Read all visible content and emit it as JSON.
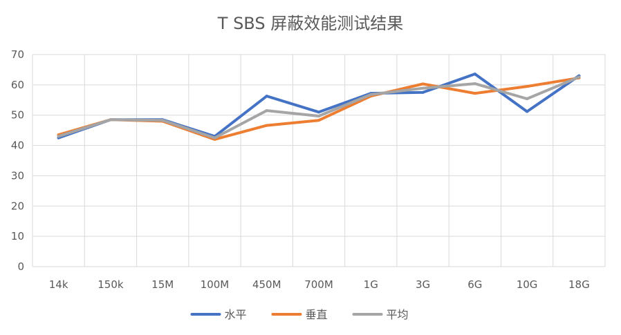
{
  "chart_data": {
    "type": "line",
    "title": "T SBS 屏蔽效能测试结果",
    "xlabel": "",
    "ylabel": "",
    "categories": [
      "14k",
      "150k",
      "15M",
      "100M",
      "450M",
      "700M",
      "1G",
      "3G",
      "6G",
      "10G",
      "18G"
    ],
    "ylim": [
      0,
      70
    ],
    "yticks": [
      0,
      10,
      20,
      30,
      40,
      50,
      60,
      70
    ],
    "grid": "vertical-and-horizontal",
    "legend_position": "bottom",
    "series": [
      {
        "name": "水平",
        "color": "#4472C4",
        "values": [
          42.5,
          48.5,
          48.5,
          43.0,
          56.3,
          51.0,
          57.2,
          57.5,
          63.6,
          51.2,
          63.0
        ]
      },
      {
        "name": "垂直",
        "color": "#ED7D31",
        "values": [
          43.5,
          48.5,
          48.0,
          42.0,
          46.6,
          48.3,
          56.3,
          60.3,
          57.2,
          59.5,
          62.3
        ]
      },
      {
        "name": "平均",
        "color": "#A5A5A5",
        "values": [
          43.0,
          48.5,
          48.3,
          42.5,
          51.5,
          49.7,
          56.8,
          58.9,
          60.4,
          55.4,
          62.6
        ]
      }
    ]
  }
}
